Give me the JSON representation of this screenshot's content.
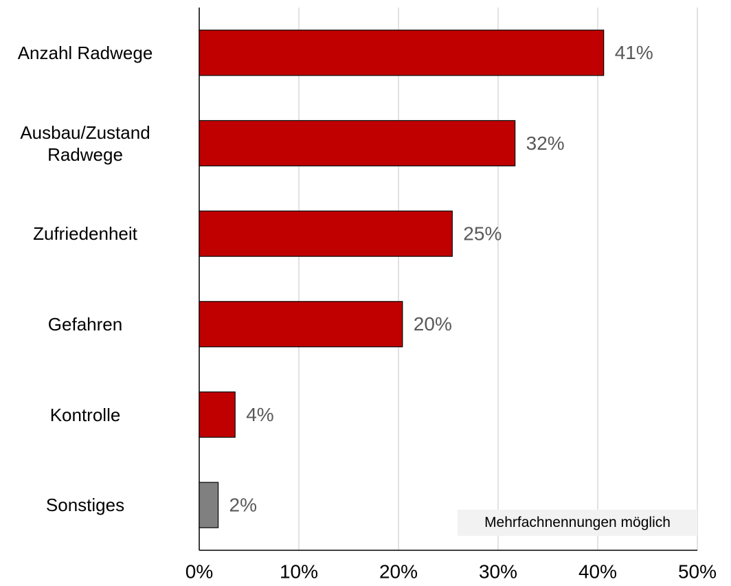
{
  "chart_data": {
    "type": "bar",
    "orientation": "horizontal",
    "categories": [
      "Anzahl Radwege",
      "Ausbau/Zustand\nRadwege",
      "Zufriedenheit",
      "Gefahren",
      "Kontrolle",
      "Sonstiges"
    ],
    "values": [
      40.6,
      31.7,
      25.4,
      20.4,
      3.6,
      1.9
    ],
    "value_labels": [
      "41%",
      "32%",
      "25%",
      "20%",
      "4%",
      "2%"
    ],
    "colors": [
      "#c00000",
      "#c00000",
      "#c00000",
      "#c00000",
      "#c00000",
      "#808080"
    ],
    "xlim": [
      0,
      50
    ],
    "xticks": [
      {
        "value": 0,
        "label": "0%"
      },
      {
        "value": 10,
        "label": "10%"
      },
      {
        "value": 20,
        "label": "20%"
      },
      {
        "value": 30,
        "label": "30%"
      },
      {
        "value": 40,
        "label": "40%"
      },
      {
        "value": 50,
        "label": "50%"
      }
    ],
    "grid": true,
    "annotation": "Mehrfachnennungen möglich"
  }
}
